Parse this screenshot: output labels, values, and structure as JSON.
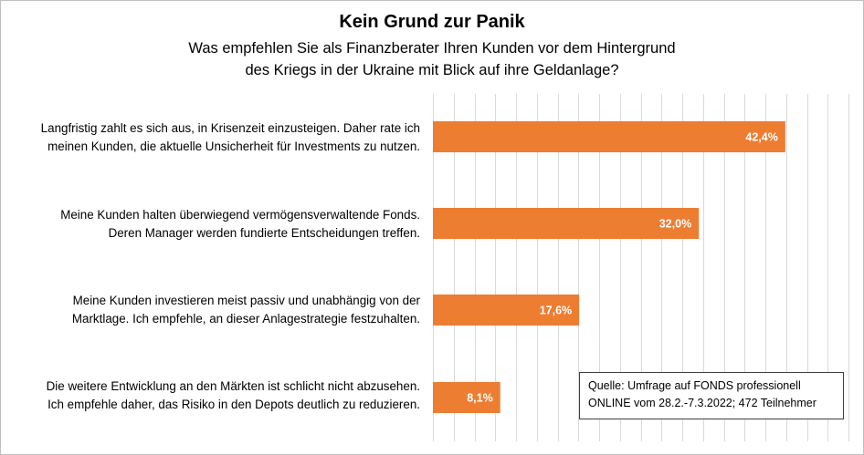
{
  "chart_data": {
    "type": "bar",
    "orientation": "horizontal",
    "title": "Kein Grund zur Panik",
    "subtitle": [
      "Was empfehlen Sie als Finanzberater Ihren Kunden vor dem Hintergrund",
      "des Kriegs in der Ukraine mit Blick auf ihre Geldanlage?"
    ],
    "categories": [
      [
        "Langfristig zahlt es sich aus, in Krisenzeit einzusteigen. Daher rate ich",
        "meinen Kunden, die aktuelle Unsicherheit für Investments zu nutzen."
      ],
      [
        "Meine Kunden halten überwiegend vermögensverwaltende Fonds.",
        "Deren Manager werden fundierte Entscheidungen treffen."
      ],
      [
        "Meine Kunden investieren meist passiv und unabhängig von der",
        "Marktlage. Ich empfehle, an dieser Anlagestrategie festzuhalten."
      ],
      [
        "Die weitere Entwicklung an den Märkten ist schlicht nicht abzusehen.",
        "Ich empfehle daher, das Risiko in den Depots deutlich zu reduzieren."
      ]
    ],
    "values": [
      42.4,
      32.0,
      17.6,
      8.1
    ],
    "data_labels": [
      "42,4%",
      "32,0%",
      "17,6%",
      "8,1%"
    ],
    "unit": "%",
    "xlim": [
      0,
      50
    ],
    "grid_step": 2.5,
    "grid": true,
    "colors": {
      "bar": "#ED7D31",
      "grid": "#d9d9d9",
      "label": "#ffffff"
    }
  },
  "source_note": [
    "Quelle: Umfrage auf FONDS professionell",
    "ONLINE vom 28.2.-7.3.2022; 472 Teilnehmer"
  ]
}
